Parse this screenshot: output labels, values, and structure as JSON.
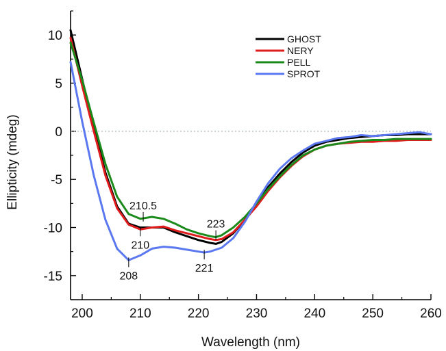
{
  "chart_data": {
    "type": "line",
    "title": "",
    "xlabel": "Wavelength (nm)",
    "ylabel": "Ellipticity (mdeg)",
    "xlim": [
      198,
      260
    ],
    "ylim": [
      -17.5,
      12.5
    ],
    "x_ticks": [
      200,
      210,
      220,
      230,
      240,
      250,
      260
    ],
    "x_tick_labels": [
      "200",
      "210",
      "220",
      "230",
      "240",
      "250",
      "260"
    ],
    "y_ticks": [
      10,
      5,
      0,
      -5,
      -10,
      -15
    ],
    "y_tick_labels": [
      "10",
      "5",
      "0",
      "-5",
      "-10",
      "-15"
    ],
    "zero_line": true,
    "grid": false,
    "legend_position": "top-right",
    "series": [
      {
        "name": "GHOST",
        "color": "#000000",
        "x": [
          198,
          200,
          202,
          204,
          206,
          208,
          210,
          212,
          214,
          216,
          218,
          220,
          222,
          223,
          224,
          226,
          228,
          230,
          232,
          234,
          236,
          238,
          240,
          242,
          244,
          246,
          248,
          250,
          252,
          254,
          256,
          258,
          260
        ],
        "y": [
          10.5,
          5.4,
          0.4,
          -4.3,
          -7.8,
          -9.6,
          -10.0,
          -10.0,
          -10.0,
          -10.5,
          -10.9,
          -11.3,
          -11.6,
          -11.7,
          -11.5,
          -10.6,
          -9.2,
          -7.6,
          -5.8,
          -4.4,
          -3.2,
          -2.2,
          -1.5,
          -1.1,
          -0.9,
          -0.7,
          -0.6,
          -0.5,
          -0.4,
          -0.4,
          -0.3,
          -0.3,
          -0.3
        ]
      },
      {
        "name": "NERY",
        "color": "#e01b1b",
        "x": [
          198,
          200,
          202,
          204,
          206,
          208,
          210,
          212,
          214,
          216,
          218,
          220,
          222,
          223,
          224,
          226,
          228,
          230,
          232,
          234,
          236,
          238,
          240,
          242,
          244,
          246,
          248,
          250,
          252,
          254,
          256,
          258,
          260
        ],
        "y": [
          9.7,
          4.7,
          0.0,
          -4.6,
          -8.0,
          -9.7,
          -10.2,
          -10.0,
          -9.9,
          -10.3,
          -10.6,
          -10.9,
          -11.2,
          -11.3,
          -11.2,
          -10.5,
          -9.2,
          -7.8,
          -6.2,
          -4.8,
          -3.6,
          -2.6,
          -1.9,
          -1.5,
          -1.3,
          -1.2,
          -1.1,
          -1.1,
          -1.0,
          -1.0,
          -0.9,
          -0.9,
          -0.9
        ]
      },
      {
        "name": "PELL",
        "color": "#1a8a1a",
        "x": [
          198,
          200,
          202,
          204,
          206,
          208,
          210,
          212,
          214,
          216,
          218,
          220,
          222,
          223,
          224,
          226,
          228,
          230,
          232,
          234,
          236,
          238,
          240,
          242,
          244,
          246,
          248,
          250,
          252,
          254,
          256,
          258,
          260
        ],
        "y": [
          9.2,
          5.3,
          0.9,
          -3.4,
          -6.8,
          -8.6,
          -9.1,
          -8.9,
          -9.1,
          -9.6,
          -10.2,
          -10.6,
          -10.9,
          -11.0,
          -10.8,
          -10.0,
          -8.9,
          -7.5,
          -6.0,
          -4.7,
          -3.5,
          -2.5,
          -1.9,
          -1.5,
          -1.3,
          -1.1,
          -1.0,
          -0.9,
          -0.9,
          -0.8,
          -0.8,
          -0.8,
          -0.8
        ]
      },
      {
        "name": "SPROT",
        "color": "#5b78f0",
        "x": [
          198,
          200,
          202,
          204,
          206,
          208,
          210,
          212,
          214,
          216,
          218,
          220,
          221,
          222,
          224,
          226,
          228,
          230,
          232,
          234,
          236,
          238,
          240,
          242,
          244,
          246,
          248,
          250,
          252,
          254,
          256,
          258,
          260
        ],
        "y": [
          7.2,
          1.0,
          -4.6,
          -9.2,
          -12.2,
          -13.4,
          -12.9,
          -12.2,
          -12.0,
          -12.1,
          -12.3,
          -12.5,
          -12.6,
          -12.5,
          -12.1,
          -11.1,
          -9.4,
          -7.3,
          -5.4,
          -3.9,
          -2.8,
          -2.0,
          -1.3,
          -1.0,
          -0.7,
          -0.6,
          -0.4,
          -0.5,
          -0.4,
          -0.3,
          -0.2,
          -0.1,
          -0.3
        ]
      }
    ],
    "annotations": [
      {
        "text": "210.5",
        "x": 210.5,
        "y": -9.1,
        "side": "above"
      },
      {
        "text": "210",
        "x": 210,
        "y": -10.2,
        "side": "below"
      },
      {
        "text": "223",
        "x": 223,
        "y": -11.0,
        "side": "above"
      },
      {
        "text": "208",
        "x": 208,
        "y": -13.4,
        "side": "below"
      },
      {
        "text": "221",
        "x": 221,
        "y": -12.6,
        "side": "below"
      }
    ]
  }
}
